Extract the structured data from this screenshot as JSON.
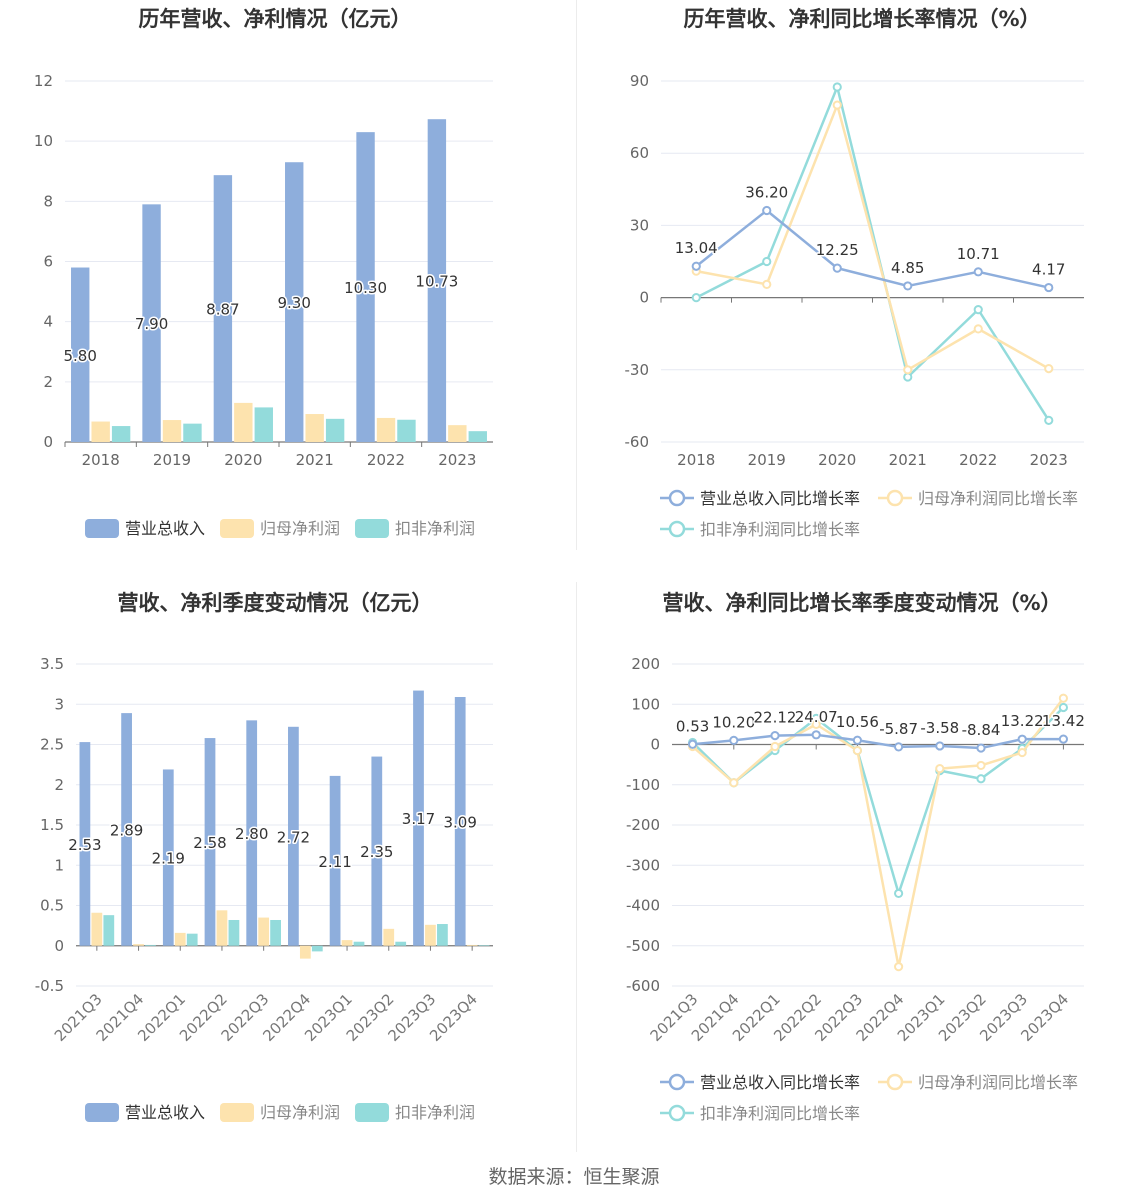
{
  "source_label": "数据来源：恒生聚源",
  "chart_data": [
    {
      "type": "bar",
      "title": "历年营收、净利情况（亿元）",
      "categories": [
        "2018",
        "2019",
        "2020",
        "2021",
        "2022",
        "2023"
      ],
      "ylim": [
        0,
        12
      ],
      "yticks": [
        0,
        2,
        4,
        6,
        8,
        10,
        12
      ],
      "series": [
        {
          "name": "营业总收入",
          "color": "#8eaedc",
          "values": [
            5.8,
            7.9,
            8.87,
            9.3,
            10.3,
            10.73
          ],
          "labels": [
            "5.80",
            "7.90",
            "8.87",
            "9.30",
            "10.30",
            "10.73"
          ]
        },
        {
          "name": "归母净利润",
          "color": "#fde3ae",
          "values": [
            0.68,
            0.73,
            1.3,
            0.93,
            0.8,
            0.56
          ]
        },
        {
          "name": "扣非净利润",
          "color": "#93dbdb",
          "values": [
            0.53,
            0.61,
            1.15,
            0.77,
            0.74,
            0.36
          ]
        }
      ],
      "legend_position": "bottom",
      "grid": true
    },
    {
      "type": "line",
      "title": "历年营收、净利同比增长率情况（%）",
      "categories": [
        "2018",
        "2019",
        "2020",
        "2021",
        "2022",
        "2023"
      ],
      "ylim": [
        -60,
        90
      ],
      "yticks": [
        -60,
        -30,
        0,
        30,
        60,
        90
      ],
      "series": [
        {
          "name": "营业总收入同比增长率",
          "color": "#8eaedc",
          "values": [
            13.04,
            36.2,
            12.25,
            4.85,
            10.71,
            4.17
          ],
          "labels": [
            "13.04",
            "36.20",
            "12.25",
            "4.85",
            "10.71",
            "4.17"
          ]
        },
        {
          "name": "归母净利润同比增长率",
          "color": "#fde3ae",
          "values": [
            11,
            5.5,
            80,
            -30,
            -13,
            -29.5
          ]
        },
        {
          "name": "扣非净利润同比增长率",
          "color": "#93dbdb",
          "values": [
            0,
            15,
            87.5,
            -33,
            -5,
            -51
          ]
        }
      ],
      "legend_position": "bottom",
      "grid": true
    },
    {
      "type": "bar",
      "title": "营收、净利季度变动情况（亿元）",
      "categories": [
        "2021Q3",
        "2021Q4",
        "2022Q1",
        "2022Q2",
        "2022Q3",
        "2022Q4",
        "2023Q1",
        "2023Q2",
        "2023Q3",
        "2023Q4"
      ],
      "ylim": [
        -0.5,
        3.5
      ],
      "yticks": [
        -0.5,
        0,
        0.5,
        1,
        1.5,
        2,
        2.5,
        3,
        3.5
      ],
      "series": [
        {
          "name": "营业总收入",
          "color": "#8eaedc",
          "values": [
            2.53,
            2.89,
            2.19,
            2.58,
            2.8,
            2.72,
            2.11,
            2.35,
            3.17,
            3.09
          ],
          "labels": [
            "2.53",
            "2.89",
            "2.19",
            "2.58",
            "2.80",
            "2.72",
            "2.11",
            "2.35",
            "3.17",
            "3.09"
          ]
        },
        {
          "name": "归母净利润",
          "color": "#fde3ae",
          "values": [
            0.41,
            0.02,
            0.16,
            0.44,
            0.35,
            -0.16,
            0.07,
            0.21,
            0.26,
            0.01
          ]
        },
        {
          "name": "扣非净利润",
          "color": "#93dbdb",
          "values": [
            0.38,
            0.01,
            0.15,
            0.32,
            0.32,
            -0.07,
            0.05,
            0.05,
            0.27,
            0.005
          ]
        }
      ],
      "legend_position": "bottom",
      "grid": true
    },
    {
      "type": "line",
      "title": "营收、净利同比增长率季度变动情况（%）",
      "categories": [
        "2021Q3",
        "2021Q4",
        "2022Q1",
        "2022Q2",
        "2022Q3",
        "2022Q4",
        "2023Q1",
        "2023Q2",
        "2023Q3",
        "2023Q4"
      ],
      "ylim": [
        -600,
        200
      ],
      "yticks": [
        -600,
        -500,
        -400,
        -300,
        -200,
        -100,
        0,
        100,
        200
      ],
      "series": [
        {
          "name": "营业总收入同比增长率",
          "color": "#8eaedc",
          "values": [
            0.53,
            10.2,
            22.12,
            24.07,
            10.56,
            -5.87,
            -3.58,
            -8.84,
            13.22,
            13.42
          ],
          "labels": [
            "0.53",
            "10.20",
            "22.12",
            "24.07",
            "10.56",
            "-5.87",
            "-3.58",
            "-8.84",
            "13.22",
            "13.42"
          ]
        },
        {
          "name": "归母净利润同比增长率",
          "color": "#fde3ae",
          "values": [
            -5,
            -95,
            -5,
            50,
            -15,
            -552,
            -60,
            -52,
            -20,
            115
          ]
        },
        {
          "name": "扣非净利润同比增长率",
          "color": "#93dbdb",
          "values": [
            5,
            -95,
            -15,
            65,
            -15,
            -370,
            -65,
            -85,
            -10,
            92
          ]
        }
      ],
      "legend_position": "bottom",
      "grid": true
    }
  ]
}
